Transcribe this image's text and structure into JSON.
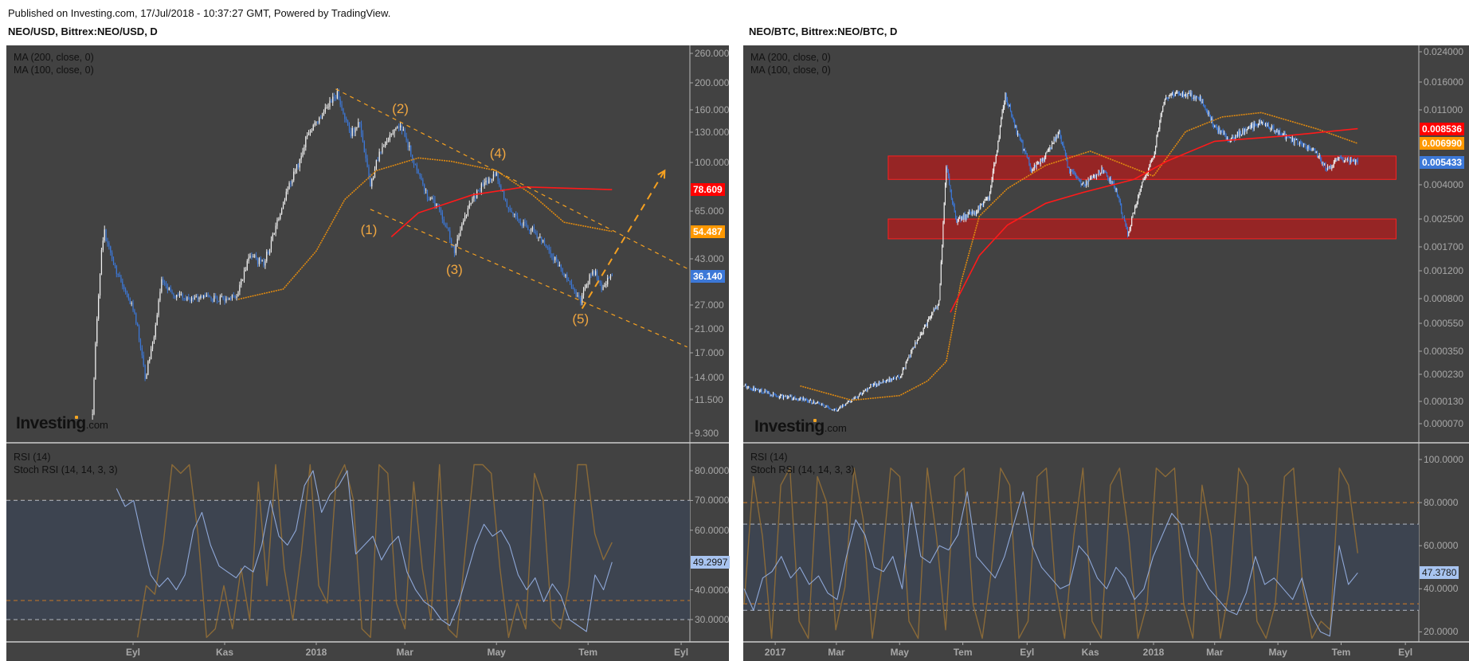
{
  "header": {
    "published": "Published on Investing.com, 17/Jul/2018 - 10:37:27 GMT, Powered by TradingView."
  },
  "logo": {
    "brand": "Investing",
    "suffix": "com"
  },
  "colors": {
    "panel_bg": "#424242",
    "candle_up": "#f2f2f2",
    "candle_down": "#3c78d8",
    "ma200": "#ff1a1a",
    "ma100": "#e08a10",
    "last_price": "#3c78d8",
    "rsi": "#8fa8d8",
    "stoch": "#8a6a38",
    "rsi_band": "#3d4450",
    "zone": "#a52020",
    "wave": "#f0a640"
  },
  "chart_data": [
    {
      "type": "candlestick",
      "title": "NEO/USD, Bittrex:NEO/USD, D",
      "indicators_main": [
        "MA (200, close, 0)",
        "MA (100, close, 0)"
      ],
      "indicators_sub": [
        "RSI (14)",
        "Stoch RSI (14, 14, 3, 3)"
      ],
      "scale": "log",
      "price_ticks": [
        "260.000",
        "200.000",
        "160.000",
        "130.000",
        "100.000",
        "65.000",
        "43.000",
        "27.000",
        "21.000",
        "17.000",
        "14.000",
        "11.500",
        "9.300"
      ],
      "price_badges": [
        {
          "label": "78.609",
          "value": 78.609,
          "color": "#ff0000"
        },
        {
          "label": "54.487",
          "value": 54.487,
          "color": "#ff9800"
        },
        {
          "label": "36.140",
          "value": 36.14,
          "color": "#3c78d8"
        }
      ],
      "time_ticks": [
        {
          "label": "Eyl",
          "date": "2017-09-01"
        },
        {
          "label": "Kas",
          "date": "2017-11-01"
        },
        {
          "label": "2018",
          "date": "2018-01-01"
        },
        {
          "label": "Mar",
          "date": "2018-03-01"
        },
        {
          "label": "May",
          "date": "2018-05-01"
        },
        {
          "label": "Tem",
          "date": "2018-07-01"
        },
        {
          "label": "Eyl",
          "date": "2018-09-01"
        }
      ],
      "close_path": [
        [
          "2017-08-05",
          10.5
        ],
        [
          "2017-08-07",
          17.9
        ],
        [
          "2017-08-11",
          48
        ],
        [
          "2017-08-13",
          54
        ],
        [
          "2017-08-20",
          39
        ],
        [
          "2017-09-02",
          25
        ],
        [
          "2017-09-09",
          14
        ],
        [
          "2017-09-15",
          19.5
        ],
        [
          "2017-09-20",
          35
        ],
        [
          "2017-09-28",
          29.4
        ],
        [
          "2017-11-01",
          28.6
        ],
        [
          "2017-11-09",
          29
        ],
        [
          "2017-11-17",
          44
        ],
        [
          "2017-11-27",
          41
        ],
        [
          "2017-12-05",
          57
        ],
        [
          "2017-12-13",
          79
        ],
        [
          "2017-12-21",
          101
        ],
        [
          "2017-12-26",
          129
        ],
        [
          "2018-01-15",
          185
        ],
        [
          "2018-01-24",
          129
        ],
        [
          "2018-01-30",
          140
        ],
        [
          "2018-02-06",
          80
        ],
        [
          "2018-02-12",
          110
        ],
        [
          "2018-02-26",
          140
        ],
        [
          "2018-03-06",
          105
        ],
        [
          "2018-03-15",
          76
        ],
        [
          "2018-03-25",
          64
        ],
        [
          "2018-04-03",
          46
        ],
        [
          "2018-04-12",
          67
        ],
        [
          "2018-04-22",
          82
        ],
        [
          "2018-05-01",
          89
        ],
        [
          "2018-05-10",
          64
        ],
        [
          "2018-05-22",
          57
        ],
        [
          "2018-06-01",
          50
        ],
        [
          "2018-06-13",
          39
        ],
        [
          "2018-06-26",
          28
        ],
        [
          "2018-07-04",
          39
        ],
        [
          "2018-07-10",
          32.5
        ],
        [
          "2018-07-17",
          36.14
        ]
      ],
      "ma100": [
        [
          "2017-11-10",
          28.6
        ],
        [
          "2017-12-10",
          31.7
        ],
        [
          "2018-01-01",
          46
        ],
        [
          "2018-01-20",
          72
        ],
        [
          "2018-02-10",
          93
        ],
        [
          "2018-03-10",
          104
        ],
        [
          "2018-04-01",
          101
        ],
        [
          "2018-05-01",
          93
        ],
        [
          "2018-05-25",
          75
        ],
        [
          "2018-06-15",
          59
        ],
        [
          "2018-07-17",
          54.487
        ]
      ],
      "ma200": [
        [
          "2018-02-20",
          52
        ],
        [
          "2018-03-10",
          64
        ],
        [
          "2018-04-15",
          75
        ],
        [
          "2018-05-20",
          80.5
        ],
        [
          "2018-07-17",
          78.609
        ]
      ],
      "wave_labels": [
        {
          "label": "(1)",
          "date": "2018-02-05",
          "price": 55
        },
        {
          "label": "(2)",
          "date": "2018-02-26",
          "price": 161
        },
        {
          "label": "(3)",
          "date": "2018-04-03",
          "price": 38.5
        },
        {
          "label": "(4)",
          "date": "2018-05-02",
          "price": 108
        },
        {
          "label": "(5)",
          "date": "2018-06-26",
          "price": 23.2
        }
      ],
      "trendlines": [
        {
          "from": [
            "2018-01-14",
            190
          ],
          "to": [
            "2018-09-05",
            39
          ],
          "style": "dashed"
        },
        {
          "from": [
            "2018-02-06",
            66
          ],
          "to": [
            "2018-09-05",
            17.9
          ],
          "style": "dashed"
        },
        {
          "from": [
            "2018-06-27",
            26
          ],
          "to": [
            "2018-08-21",
            93
          ],
          "style": "dashed-arrow"
        }
      ],
      "rsi_ticks": [
        "80.0000",
        "70.0000",
        "60.0000",
        "40.0000",
        "30.0000"
      ],
      "rsi_levels": {
        "stoch_upper": 70,
        "stoch_lower": 36.4,
        "rsi_upper": 70,
        "rsi_lower": 30
      },
      "rsi_last": {
        "label": "49.2997",
        "value": 49.2997
      },
      "rsi": {
        "start": "2017-08-21",
        "end": "2018-07-17",
        "values": [
          74,
          68,
          70,
          57,
          45,
          41,
          44,
          40,
          45,
          60,
          66,
          55,
          48,
          46,
          44,
          48,
          46,
          55,
          70,
          58,
          55,
          60,
          75,
          80,
          66,
          72,
          75,
          80,
          52,
          55,
          58,
          50,
          55,
          58,
          46,
          40,
          36,
          34,
          30,
          28,
          35,
          45,
          55,
          62,
          58,
          60,
          55,
          45,
          40,
          44,
          36,
          42,
          38,
          30,
          28,
          26,
          45,
          40,
          49.3
        ]
      },
      "stoch": {
        "start": "2017-09-04",
        "end": "2018-07-17",
        "values": [
          0,
          30,
          25,
          55,
          100,
          95,
          100,
          60,
          0,
          5,
          30,
          5,
          40,
          10,
          90,
          30,
          100,
          40,
          10,
          50,
          100,
          30,
          20,
          90,
          100,
          80,
          5,
          0,
          100,
          95,
          20,
          5,
          90,
          40,
          10,
          100,
          5,
          0,
          50,
          100,
          100,
          95,
          40,
          0,
          20,
          5,
          95,
          80,
          10,
          5,
          30,
          100,
          100,
          60,
          45,
          55
        ]
      }
    },
    {
      "type": "candlestick",
      "title": "NEO/BTC, Bittrex:NEO/BTC, D",
      "indicators_main": [
        "MA (200, close, 0)",
        "MA (100, close, 0)"
      ],
      "indicators_sub": [
        "RSI (14)",
        "Stoch RSI (14, 14, 3, 3)"
      ],
      "scale": "log",
      "price_ticks": [
        "0.024000",
        "0.016000",
        "0.011000",
        "0.004000",
        "0.002500",
        "0.001700",
        "0.001200",
        "0.000800",
        "0.000550",
        "0.000350",
        "0.000230",
        "0.000130",
        "0.000070"
      ],
      "price_badges": [
        {
          "label": "0.008536",
          "value": 0.008536,
          "color": "#ff0000"
        },
        {
          "label": "0.006990",
          "value": 0.00699,
          "color": "#ff9800"
        },
        {
          "label": "0.005433",
          "value": 0.005433,
          "color": "#3c78d8"
        }
      ],
      "time_ticks": [
        {
          "label": "2017",
          "date": "2017-01-01"
        },
        {
          "label": "Mar",
          "date": "2017-03-01"
        },
        {
          "label": "May",
          "date": "2017-05-01"
        },
        {
          "label": "Tem",
          "date": "2017-07-01"
        },
        {
          "label": "Eyl",
          "date": "2017-09-01"
        },
        {
          "label": "Kas",
          "date": "2017-11-01"
        },
        {
          "label": "2018",
          "date": "2018-01-01"
        },
        {
          "label": "Mar",
          "date": "2018-03-01"
        },
        {
          "label": "May",
          "date": "2018-05-01"
        },
        {
          "label": "Tem",
          "date": "2018-07-01"
        },
        {
          "label": "Eyl",
          "date": "2018-09-01"
        }
      ],
      "close_path": [
        [
          "2016-12-02",
          0.00018
        ],
        [
          "2017-01-01",
          0.000147
        ],
        [
          "2017-02-01",
          0.000133
        ],
        [
          "2017-03-01",
          0.000103
        ],
        [
          "2017-03-16",
          0.000133
        ],
        [
          "2017-04-03",
          0.00018
        ],
        [
          "2017-05-01",
          0.00022
        ],
        [
          "2017-05-14",
          0.000366
        ],
        [
          "2017-05-28",
          0.00056
        ],
        [
          "2017-06-08",
          0.00077
        ],
        [
          "2017-06-15",
          0.00524
        ],
        [
          "2017-06-24",
          0.00245
        ],
        [
          "2017-07-13",
          0.00277
        ],
        [
          "2017-07-26",
          0.00334
        ],
        [
          "2017-08-04",
          0.0072
        ],
        [
          "2017-08-11",
          0.0136
        ],
        [
          "2017-08-22",
          0.0082
        ],
        [
          "2017-09-05",
          0.0049
        ],
        [
          "2017-09-19",
          0.0059
        ],
        [
          "2017-10-02",
          0.0082
        ],
        [
          "2017-10-11",
          0.0049
        ],
        [
          "2017-10-25",
          0.004
        ],
        [
          "2017-11-12",
          0.0049
        ],
        [
          "2017-11-26",
          0.0038
        ],
        [
          "2017-12-07",
          0.002
        ],
        [
          "2017-12-18",
          0.0036
        ],
        [
          "2018-01-01",
          0.0059
        ],
        [
          "2018-01-10",
          0.012
        ],
        [
          "2018-01-19",
          0.0136
        ],
        [
          "2018-02-01",
          0.0136
        ],
        [
          "2018-02-15",
          0.0129
        ],
        [
          "2018-03-01",
          0.0087
        ],
        [
          "2018-03-15",
          0.0074
        ],
        [
          "2018-03-28",
          0.0082
        ],
        [
          "2018-04-15",
          0.0093
        ],
        [
          "2018-05-01",
          0.0082
        ],
        [
          "2018-05-18",
          0.0072
        ],
        [
          "2018-06-05",
          0.0063
        ],
        [
          "2018-06-19",
          0.0049
        ],
        [
          "2018-06-28",
          0.0057
        ],
        [
          "2018-07-07",
          0.0056
        ],
        [
          "2018-07-17",
          0.005433
        ]
      ],
      "ma100": [
        [
          "2017-01-25",
          0.00018
        ],
        [
          "2017-03-16",
          0.000133
        ],
        [
          "2017-05-01",
          0.000147
        ],
        [
          "2017-05-28",
          0.0002
        ],
        [
          "2017-06-15",
          0.00029
        ],
        [
          "2017-06-29",
          0.001
        ],
        [
          "2017-07-17",
          0.0026
        ],
        [
          "2017-08-13",
          0.0038
        ],
        [
          "2017-09-19",
          0.0052
        ],
        [
          "2017-11-01",
          0.0063
        ],
        [
          "2018-01-01",
          0.0045
        ],
        [
          "2018-02-01",
          0.0082
        ],
        [
          "2018-03-08",
          0.01
        ],
        [
          "2018-04-15",
          0.0106
        ],
        [
          "2018-06-08",
          0.0085
        ],
        [
          "2018-07-17",
          0.00699
        ]
      ],
      "ma200": [
        [
          "2017-06-19",
          0.00065
        ],
        [
          "2017-07-17",
          0.0015
        ],
        [
          "2017-08-13",
          0.0023
        ],
        [
          "2017-09-19",
          0.0031
        ],
        [
          "2017-10-25",
          0.0036
        ],
        [
          "2017-12-13",
          0.0043
        ],
        [
          "2018-01-14",
          0.0055
        ],
        [
          "2018-03-01",
          0.0072
        ],
        [
          "2018-05-04",
          0.0077
        ],
        [
          "2018-07-17",
          0.008536
        ]
      ],
      "zones": [
        {
          "from": "2017-04-20",
          "to": "2018-08-23",
          "top": 0.0059,
          "bottom": 0.0043
        },
        {
          "from": "2017-04-20",
          "to": "2018-08-23",
          "top": 0.0025,
          "bottom": 0.0019
        }
      ],
      "rsi_ticks": [
        "100.0000",
        "80.0000",
        "60.0000",
        "40.0000",
        "20.0000"
      ],
      "rsi_levels": {
        "stoch_upper": 80,
        "stoch_lower": 33,
        "rsi_upper": 70,
        "rsi_lower": 30
      },
      "rsi_last": {
        "label": "47.3780",
        "value": 47.378
      },
      "rsi": {
        "start": "2016-12-02",
        "end": "2018-07-17",
        "values": [
          40,
          30,
          45,
          48,
          55,
          45,
          50,
          42,
          46,
          38,
          35,
          55,
          72,
          65,
          50,
          48,
          55,
          40,
          80,
          55,
          52,
          60,
          58,
          65,
          85,
          55,
          50,
          45,
          55,
          70,
          85,
          60,
          50,
          45,
          40,
          42,
          60,
          55,
          45,
          40,
          50,
          45,
          35,
          40,
          55,
          65,
          75,
          70,
          55,
          48,
          40,
          35,
          30,
          28,
          38,
          55,
          42,
          45,
          40,
          35,
          45,
          28,
          20,
          18,
          60,
          42,
          47.378
        ]
      },
      "stoch": {
        "start": "2016-12-02",
        "end": "2018-07-17",
        "values": [
          20,
          95,
          60,
          0,
          90,
          100,
          10,
          0,
          95,
          80,
          5,
          30,
          100,
          70,
          0,
          40,
          100,
          95,
          10,
          0,
          100,
          60,
          5,
          95,
          100,
          20,
          0,
          40,
          100,
          90,
          0,
          10,
          95,
          100,
          30,
          0,
          60,
          100,
          10,
          0,
          90,
          100,
          60,
          0,
          20,
          100,
          95,
          100,
          20,
          0,
          90,
          60,
          0,
          30,
          100,
          90,
          10,
          0,
          20,
          95,
          100,
          30,
          0,
          10,
          5,
          100,
          90,
          50
        ]
      }
    }
  ]
}
